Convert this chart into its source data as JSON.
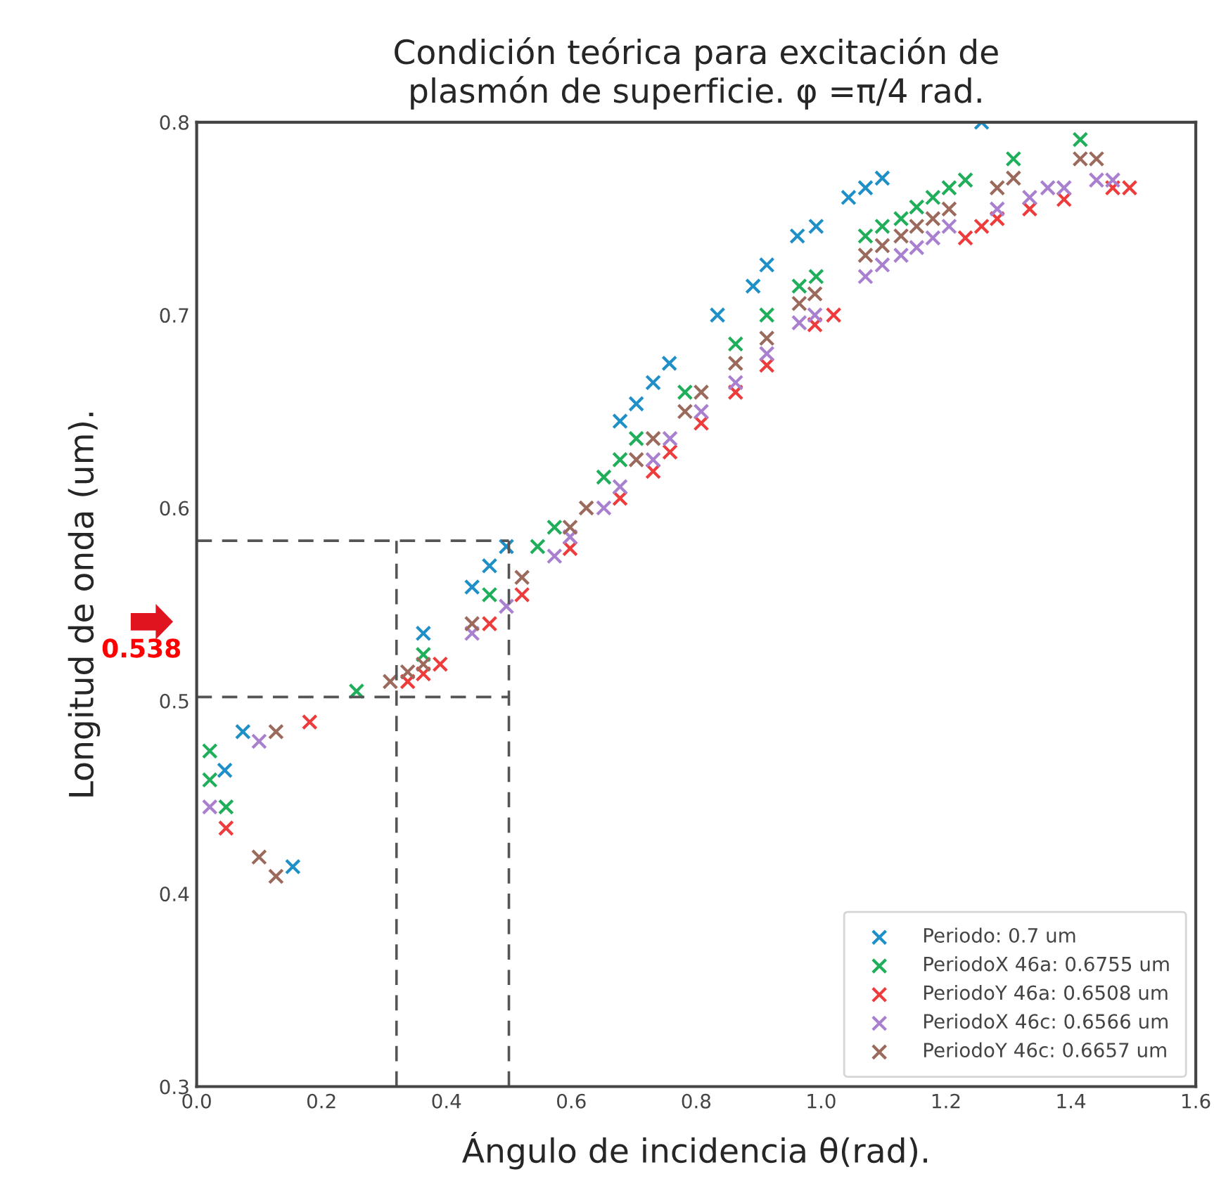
{
  "chart_data": {
    "type": "scatter",
    "title": "Condición teórica para excitación de\nplasmón de superficie. φ =π/4 rad.",
    "xlabel": "Ángulo de incidencia θ(rad).",
    "ylabel": "Longitud de onda (um).",
    "xlim": [
      0.0,
      1.6
    ],
    "xticks": [
      {
        "value": 0.0,
        "label": "0.0"
      },
      0.2,
      0.4,
      0.6,
      0.8,
      {
        "value": 1.0,
        "label": "1.0"
      },
      1.2,
      1.4,
      1.6
    ],
    "ylim": [
      0.3,
      0.8
    ],
    "yticks": [
      0.3,
      0.4,
      0.5,
      0.6,
      0.7,
      0.8
    ],
    "marker": "cross",
    "grid": false,
    "legend": "bottom right",
    "ref_lines": [
      {
        "axis": "x",
        "value": 0.32,
        "line_style": "dashed",
        "color": "#555555"
      },
      {
        "axis": "x",
        "value": 0.5,
        "line_style": "dashed",
        "color": "#555555"
      },
      {
        "axis": "y",
        "value": 0.502,
        "line_style": "dashed",
        "color": "#555555"
      },
      {
        "axis": "y",
        "value": 0.583,
        "line_style": "dashed",
        "color": "#555555"
      }
    ],
    "annotations": [
      "0.538"
    ],
    "series": [
      {
        "name": "Periodo: 0.7 um",
        "color": "#1f8fc7",
        "x": [
          0.045,
          0.074,
          0.154,
          0.363,
          0.441,
          0.469,
          0.496,
          0.678,
          0.704,
          0.731,
          0.757,
          0.834,
          0.891,
          0.913,
          0.962,
          0.992,
          1.044,
          1.071,
          1.098,
          1.257
        ],
        "values": [
          0.464,
          0.484,
          0.414,
          0.535,
          0.559,
          0.57,
          0.58,
          0.645,
          0.654,
          0.665,
          0.675,
          0.7,
          0.715,
          0.726,
          0.741,
          0.746,
          0.761,
          0.766,
          0.771,
          0.8
        ]
      },
      {
        "name": "PeriodoX 46a: 0.6755 um",
        "color": "#1fae5a",
        "x": [
          0.021,
          0.021,
          0.047,
          0.256,
          0.363,
          0.469,
          0.546,
          0.573,
          0.652,
          0.678,
          0.704,
          0.782,
          0.863,
          0.913,
          0.965,
          0.992,
          1.071,
          1.098,
          1.128,
          1.153,
          1.179,
          1.205,
          1.231,
          1.308,
          1.415
        ],
        "values": [
          0.474,
          0.459,
          0.445,
          0.505,
          0.524,
          0.555,
          0.58,
          0.59,
          0.616,
          0.625,
          0.636,
          0.66,
          0.685,
          0.7,
          0.715,
          0.72,
          0.741,
          0.746,
          0.75,
          0.756,
          0.761,
          0.766,
          0.77,
          0.781,
          0.791
        ]
      },
      {
        "name": "PeriodoY 46a: 0.6508 um",
        "color": "#ee3b3b",
        "x": [
          0.047,
          0.181,
          0.338,
          0.363,
          0.39,
          0.469,
          0.521,
          0.598,
          0.678,
          0.731,
          0.758,
          0.808,
          0.863,
          0.913,
          0.99,
          1.02,
          1.231,
          1.257,
          1.282,
          1.334,
          1.389,
          1.467,
          1.494
        ],
        "values": [
          0.434,
          0.489,
          0.51,
          0.514,
          0.519,
          0.54,
          0.555,
          0.579,
          0.605,
          0.619,
          0.629,
          0.644,
          0.66,
          0.674,
          0.695,
          0.7,
          0.74,
          0.746,
          0.75,
          0.755,
          0.76,
          0.766,
          0.766
        ]
      },
      {
        "name": "PeriodoX 46c: 0.6566 um",
        "color": "#a97fcf",
        "x": [
          0.021,
          0.1,
          0.441,
          0.496,
          0.573,
          0.598,
          0.652,
          0.678,
          0.731,
          0.758,
          0.808,
          0.863,
          0.913,
          0.965,
          0.99,
          1.071,
          1.098,
          1.128,
          1.153,
          1.179,
          1.205,
          1.282,
          1.334,
          1.363,
          1.389,
          1.441,
          1.467
        ],
        "values": [
          0.445,
          0.479,
          0.535,
          0.549,
          0.575,
          0.585,
          0.6,
          0.611,
          0.625,
          0.636,
          0.65,
          0.665,
          0.68,
          0.696,
          0.7,
          0.72,
          0.726,
          0.731,
          0.735,
          0.74,
          0.746,
          0.755,
          0.761,
          0.766,
          0.766,
          0.77,
          0.77
        ]
      },
      {
        "name": "PeriodoY 46c: 0.6657 um",
        "color": "#9b6a5c",
        "x": [
          0.1,
          0.127,
          0.127,
          0.31,
          0.338,
          0.363,
          0.441,
          0.521,
          0.598,
          0.624,
          0.704,
          0.731,
          0.782,
          0.808,
          0.863,
          0.913,
          0.965,
          0.99,
          1.071,
          1.098,
          1.128,
          1.153,
          1.179,
          1.205,
          1.282,
          1.308,
          1.415,
          1.441
        ],
        "values": [
          0.419,
          0.484,
          0.409,
          0.51,
          0.515,
          0.519,
          0.54,
          0.564,
          0.59,
          0.6,
          0.625,
          0.636,
          0.65,
          0.66,
          0.675,
          0.688,
          0.706,
          0.711,
          0.731,
          0.736,
          0.741,
          0.746,
          0.75,
          0.755,
          0.766,
          0.771,
          0.781,
          0.781
        ]
      }
    ]
  }
}
